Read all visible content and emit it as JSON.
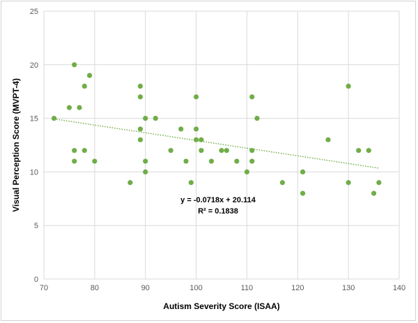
{
  "chart_data": {
    "type": "scatter",
    "title": "",
    "xlabel": "Autism Severity Score (ISAA)",
    "ylabel": "Visual Perception Score (MVPT-4)",
    "xlim": [
      70,
      140
    ],
    "ylim": [
      0,
      25
    ],
    "xticks": [
      70,
      80,
      90,
      100,
      110,
      120,
      130,
      140
    ],
    "yticks": [
      0,
      5,
      10,
      15,
      20,
      25
    ],
    "grid": "vertical and horizontal major",
    "legend": "none",
    "marker_color": "#70ad47",
    "trendline": {
      "slope": -0.0718,
      "intercept": 20.114,
      "x_range": [
        72,
        136
      ],
      "equation_label": "y = -0.0718x + 20.114",
      "r2_label": "R² = 0.1838",
      "style": "dotted",
      "color": "#70ad47"
    },
    "points": [
      {
        "x": 72,
        "y": 15
      },
      {
        "x": 75,
        "y": 16
      },
      {
        "x": 76,
        "y": 20
      },
      {
        "x": 76,
        "y": 12
      },
      {
        "x": 76,
        "y": 11
      },
      {
        "x": 77,
        "y": 16
      },
      {
        "x": 78,
        "y": 18
      },
      {
        "x": 78,
        "y": 12
      },
      {
        "x": 79,
        "y": 19
      },
      {
        "x": 80,
        "y": 11
      },
      {
        "x": 87,
        "y": 9
      },
      {
        "x": 89,
        "y": 18
      },
      {
        "x": 89,
        "y": 17
      },
      {
        "x": 89,
        "y": 14
      },
      {
        "x": 89,
        "y": 13
      },
      {
        "x": 90,
        "y": 15
      },
      {
        "x": 90,
        "y": 11
      },
      {
        "x": 90,
        "y": 10
      },
      {
        "x": 92,
        "y": 15
      },
      {
        "x": 95,
        "y": 12
      },
      {
        "x": 97,
        "y": 14
      },
      {
        "x": 98,
        "y": 11
      },
      {
        "x": 99,
        "y": 9
      },
      {
        "x": 100,
        "y": 17
      },
      {
        "x": 100,
        "y": 14
      },
      {
        "x": 100,
        "y": 13
      },
      {
        "x": 101,
        "y": 13
      },
      {
        "x": 101,
        "y": 12
      },
      {
        "x": 103,
        "y": 11
      },
      {
        "x": 105,
        "y": 12
      },
      {
        "x": 106,
        "y": 12
      },
      {
        "x": 108,
        "y": 11
      },
      {
        "x": 110,
        "y": 10
      },
      {
        "x": 111,
        "y": 17
      },
      {
        "x": 111,
        "y": 12
      },
      {
        "x": 111,
        "y": 11
      },
      {
        "x": 112,
        "y": 15
      },
      {
        "x": 117,
        "y": 9
      },
      {
        "x": 121,
        "y": 10
      },
      {
        "x": 121,
        "y": 8
      },
      {
        "x": 126,
        "y": 13
      },
      {
        "x": 130,
        "y": 18
      },
      {
        "x": 130,
        "y": 9
      },
      {
        "x": 132,
        "y": 12
      },
      {
        "x": 134,
        "y": 12
      },
      {
        "x": 135,
        "y": 8
      },
      {
        "x": 136,
        "y": 9
      }
    ]
  }
}
